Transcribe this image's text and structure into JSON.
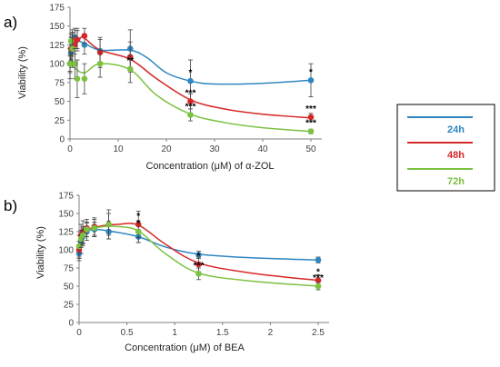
{
  "chart_data": [
    {
      "panel_label": "a)",
      "type": "scatter",
      "xlabel": "Concentration (μM) of α-ZOL",
      "ylabel": "Viability (%)",
      "xlim": [
        0,
        50
      ],
      "ylim": [
        0,
        175
      ],
      "xticks": [
        0,
        10,
        20,
        30,
        40,
        50
      ],
      "yticks": [
        0,
        25,
        50,
        75,
        100,
        125,
        150,
        175
      ],
      "grid": false,
      "series": [
        {
          "name": "24h",
          "color": "#2e86c1",
          "x": [
            0,
            0.2,
            0.5,
            1,
            1.5,
            3,
            6.25,
            12.5,
            25,
            50
          ],
          "y": [
            100,
            115,
            125,
            135,
            132,
            125,
            117,
            120,
            77,
            78
          ],
          "err": [
            10,
            15,
            15,
            12,
            15,
            12,
            15,
            25,
            28,
            22
          ],
          "labels": [
            "",
            "",
            "",
            "",
            "",
            "",
            "",
            "",
            "*",
            "*"
          ],
          "curve": [
            [
              0,
              110
            ],
            [
              1,
              130
            ],
            [
              3,
              127
            ],
            [
              6.25,
              118
            ],
            [
              12.5,
              118
            ],
            [
              16,
              108
            ],
            [
              20,
              88
            ],
            [
              25,
              77
            ],
            [
              30,
              73
            ],
            [
              40,
              74
            ],
            [
              50,
              78
            ]
          ]
        },
        {
          "name": "48h",
          "color": "#d62728",
          "x": [
            0,
            0.2,
            0.5,
            1,
            1.5,
            3,
            6.25,
            12.5,
            25,
            50
          ],
          "y": [
            100,
            120,
            130,
            125,
            132,
            137,
            115,
            109,
            50,
            29
          ],
          "err": [
            12,
            15,
            12,
            12,
            12,
            10,
            20,
            20,
            10,
            5
          ],
          "labels": [
            "",
            "",
            "",
            "",
            "",
            "",
            "",
            "",
            "***",
            "***"
          ],
          "curve": [
            [
              0,
              113
            ],
            [
              2,
              133
            ],
            [
              3,
              134
            ],
            [
              6.25,
              118
            ],
            [
              12.5,
              106
            ],
            [
              18,
              80
            ],
            [
              25,
              52
            ],
            [
              32,
              40
            ],
            [
              40,
              33
            ],
            [
              50,
              28
            ]
          ]
        },
        {
          "name": "72h",
          "color": "#7cc142",
          "x": [
            0,
            0.2,
            0.5,
            1,
            1.5,
            3,
            6.25,
            12.5,
            25,
            50
          ],
          "y": [
            100,
            130,
            120,
            100,
            80,
            80,
            100,
            93,
            32,
            10
          ],
          "err": [
            20,
            10,
            25,
            20,
            25,
            20,
            18,
            18,
            8,
            3
          ],
          "labels": [
            "",
            "",
            "",
            "",
            "",
            "",
            "",
            "**",
            "***",
            "***"
          ],
          "curve": [
            [
              0,
              112
            ],
            [
              1,
              95
            ],
            [
              3,
              88
            ],
            [
              6.25,
              100
            ],
            [
              12.5,
              92
            ],
            [
              18,
              58
            ],
            [
              25,
              33
            ],
            [
              32,
              22
            ],
            [
              40,
              15
            ],
            [
              50,
              10
            ]
          ]
        }
      ]
    },
    {
      "panel_label": "b)",
      "type": "scatter",
      "xlabel": "Concentration (μM) of BEA",
      "ylabel": "Viability (%)",
      "xlim": [
        0,
        2.5
      ],
      "ylim": [
        0,
        175
      ],
      "xticks": [
        0,
        0.5,
        1,
        1.5,
        2,
        2.5
      ],
      "yticks": [
        0,
        25,
        50,
        75,
        100,
        125,
        150,
        175
      ],
      "grid": false,
      "series": [
        {
          "name": "24h",
          "color": "#2e86c1",
          "x": [
            0,
            0.02,
            0.04,
            0.08,
            0.16,
            0.31,
            0.62,
            1.25,
            2.5
          ],
          "y": [
            95,
            110,
            118,
            125,
            128,
            125,
            118,
            93,
            86
          ],
          "err": [
            10,
            15,
            12,
            12,
            10,
            10,
            8,
            5,
            4
          ],
          "labels": [
            "",
            "",
            "",
            "",
            "",
            "*",
            "",
            "",
            ""
          ],
          "curve": [
            [
              0,
              105
            ],
            [
              0.05,
              122
            ],
            [
              0.15,
              128
            ],
            [
              0.31,
              126
            ],
            [
              0.62,
              118
            ],
            [
              0.9,
              104
            ],
            [
              1.25,
              94
            ],
            [
              1.8,
              89
            ],
            [
              2.5,
              86
            ]
          ]
        },
        {
          "name": "48h",
          "color": "#d62728",
          "x": [
            0,
            0.02,
            0.04,
            0.08,
            0.16,
            0.31,
            0.62,
            1.25,
            2.5
          ],
          "y": [
            100,
            120,
            125,
            130,
            132,
            135,
            135,
            80,
            58
          ],
          "err": [
            12,
            15,
            15,
            12,
            12,
            15,
            18,
            10,
            8
          ],
          "labels": [
            "",
            "",
            "",
            "",
            "",
            "",
            "*",
            "*",
            "*"
          ],
          "curve": [
            [
              0,
              108
            ],
            [
              0.05,
              125
            ],
            [
              0.2,
              132
            ],
            [
              0.4,
              135
            ],
            [
              0.62,
              134
            ],
            [
              0.9,
              108
            ],
            [
              1.25,
              82
            ],
            [
              1.8,
              68
            ],
            [
              2.5,
              58
            ]
          ]
        },
        {
          "name": "72h",
          "color": "#7cc142",
          "x": [
            0,
            0.02,
            0.04,
            0.08,
            0.16,
            0.31,
            0.62,
            1.25,
            2.5
          ],
          "y": [
            105,
            115,
            120,
            128,
            130,
            135,
            125,
            67,
            50
          ],
          "err": [
            15,
            12,
            12,
            10,
            12,
            20,
            15,
            8,
            5
          ],
          "labels": [
            "",
            "",
            "",
            "",
            "",
            "",
            "*",
            "***",
            "***"
          ],
          "curve": [
            [
              0,
              112
            ],
            [
              0.05,
              124
            ],
            [
              0.2,
              131
            ],
            [
              0.4,
              132
            ],
            [
              0.62,
              126
            ],
            [
              0.9,
              95
            ],
            [
              1.25,
              68
            ],
            [
              1.8,
              57
            ],
            [
              2.5,
              50
            ]
          ]
        }
      ]
    }
  ],
  "legend": {
    "items": [
      {
        "label": "24h",
        "color": "#2e86c1"
      },
      {
        "label": "48h",
        "color": "#d62728"
      },
      {
        "label": "72h",
        "color": "#7cc142"
      }
    ]
  }
}
